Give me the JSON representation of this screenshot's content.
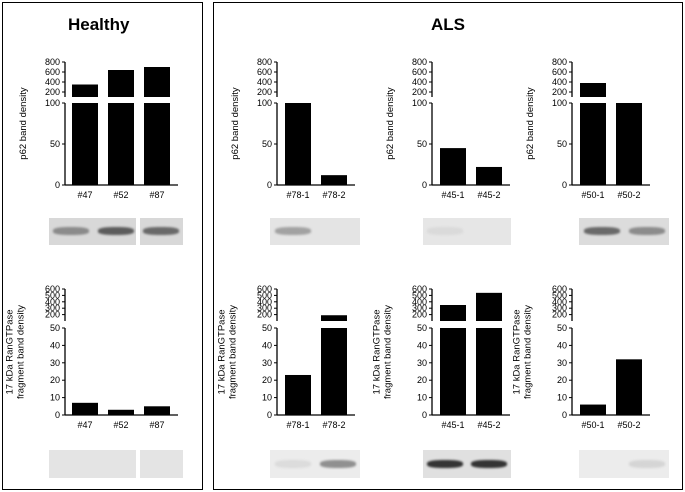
{
  "panels": [
    {
      "title": "Healthy"
    },
    {
      "title": "ALS"
    }
  ],
  "chart_data": [
    {
      "type": "bar",
      "group": "Healthy",
      "ylabel": [
        "p62 band density"
      ],
      "categories": [
        "#47",
        "#52",
        "#87"
      ],
      "values": [
        350,
        640,
        700
      ],
      "lower_ticks": [
        "0",
        "50",
        "100"
      ],
      "upper_ticks": [
        "200",
        "400",
        "600",
        "800"
      ],
      "break": {
        "lower": [
          0,
          100
        ],
        "upper": [
          100,
          800
        ]
      }
    },
    {
      "type": "bar",
      "group": "ALS",
      "ylabel": [
        "p62 band density"
      ],
      "categories": [
        "#78-1",
        "#78-2"
      ],
      "values": [
        100,
        12
      ],
      "lower_ticks": [
        "0",
        "50",
        "100"
      ],
      "upper_ticks": [
        "200",
        "400",
        "600",
        "800"
      ],
      "break": {
        "lower": [
          0,
          100
        ],
        "upper": [
          100,
          800
        ]
      }
    },
    {
      "type": "bar",
      "group": "ALS",
      "ylabel": [
        "p62 band density"
      ],
      "categories": [
        "#45-1",
        "#45-2"
      ],
      "values": [
        45,
        22
      ],
      "lower_ticks": [
        "0",
        "50",
        "100"
      ],
      "upper_ticks": [
        "200",
        "400",
        "600",
        "800"
      ],
      "break": {
        "lower": [
          0,
          100
        ],
        "upper": [
          100,
          800
        ]
      }
    },
    {
      "type": "bar",
      "group": "ALS",
      "ylabel": [
        "p62 band density"
      ],
      "categories": [
        "#50-1",
        "#50-2"
      ],
      "values": [
        380,
        100
      ],
      "lower_ticks": [
        "0",
        "50",
        "100"
      ],
      "upper_ticks": [
        "200",
        "400",
        "600",
        "800"
      ],
      "break": {
        "lower": [
          0,
          100
        ],
        "upper": [
          100,
          800
        ]
      }
    },
    {
      "type": "bar",
      "group": "Healthy",
      "ylabel": [
        "17 kDa RanGTPase",
        "fragment band density"
      ],
      "categories": [
        "#47",
        "#52",
        "#87"
      ],
      "values": [
        7,
        3,
        5
      ],
      "lower_ticks": [
        "0",
        "10",
        "20",
        "30",
        "40",
        "50"
      ],
      "upper_ticks": [
        "200",
        "300",
        "400",
        "500",
        "600"
      ],
      "break": {
        "lower": [
          0,
          50
        ],
        "upper": [
          100,
          600
        ]
      }
    },
    {
      "type": "bar",
      "group": "ALS",
      "ylabel": [
        "17 kDa RanGTPase",
        "fragment band density"
      ],
      "categories": [
        "#78-1",
        "#78-2"
      ],
      "values": [
        23,
        190
      ],
      "lower_ticks": [
        "0",
        "10",
        "20",
        "30",
        "40",
        "50"
      ],
      "upper_ticks": [
        "200",
        "300",
        "400",
        "500",
        "600"
      ],
      "break": {
        "lower": [
          0,
          50
        ],
        "upper": [
          100,
          600
        ]
      }
    },
    {
      "type": "bar",
      "group": "ALS",
      "ylabel": [
        "17 kDa RanGTPase",
        "fragment band density"
      ],
      "categories": [
        "#45-1",
        "#45-2"
      ],
      "values": [
        350,
        540
      ],
      "lower_ticks": [
        "0",
        "10",
        "20",
        "30",
        "40",
        "50"
      ],
      "upper_ticks": [
        "200",
        "300",
        "400",
        "500",
        "600"
      ],
      "break": {
        "lower": [
          0,
          50
        ],
        "upper": [
          100,
          600
        ]
      }
    },
    {
      "type": "bar",
      "group": "ALS",
      "ylabel": [
        "17 kDa RanGTPase",
        "fragment band density"
      ],
      "categories": [
        "#50-1",
        "#50-2"
      ],
      "values": [
        6,
        32
      ],
      "lower_ticks": [
        "0",
        "10",
        "20",
        "30",
        "40",
        "50"
      ],
      "upper_ticks": [
        "200",
        "300",
        "400",
        "500",
        "600"
      ],
      "break": {
        "lower": [
          0,
          50
        ],
        "upper": [
          100,
          600
        ]
      }
    }
  ],
  "blots": [
    {
      "bands": [
        0.55,
        0.75,
        0.7
      ],
      "color": "#d8d8d8"
    },
    {
      "bands": [
        0.45,
        0.0
      ],
      "color": "#e4e4e4"
    },
    {
      "bands": [
        0.08,
        0.0
      ],
      "color": "#e6e6e6"
    },
    {
      "bands": [
        0.7,
        0.55
      ],
      "color": "#dcdcdc"
    },
    {
      "bands": [
        0.0,
        0.0,
        0.0
      ],
      "color": "#e4e4e4"
    },
    {
      "bands": [
        0.1,
        0.55
      ],
      "color": "#ececec"
    },
    {
      "bands": [
        0.9,
        0.9
      ],
      "color": "#e0e0e0"
    },
    {
      "bands": [
        0.0,
        0.15
      ],
      "color": "#ececec"
    }
  ]
}
